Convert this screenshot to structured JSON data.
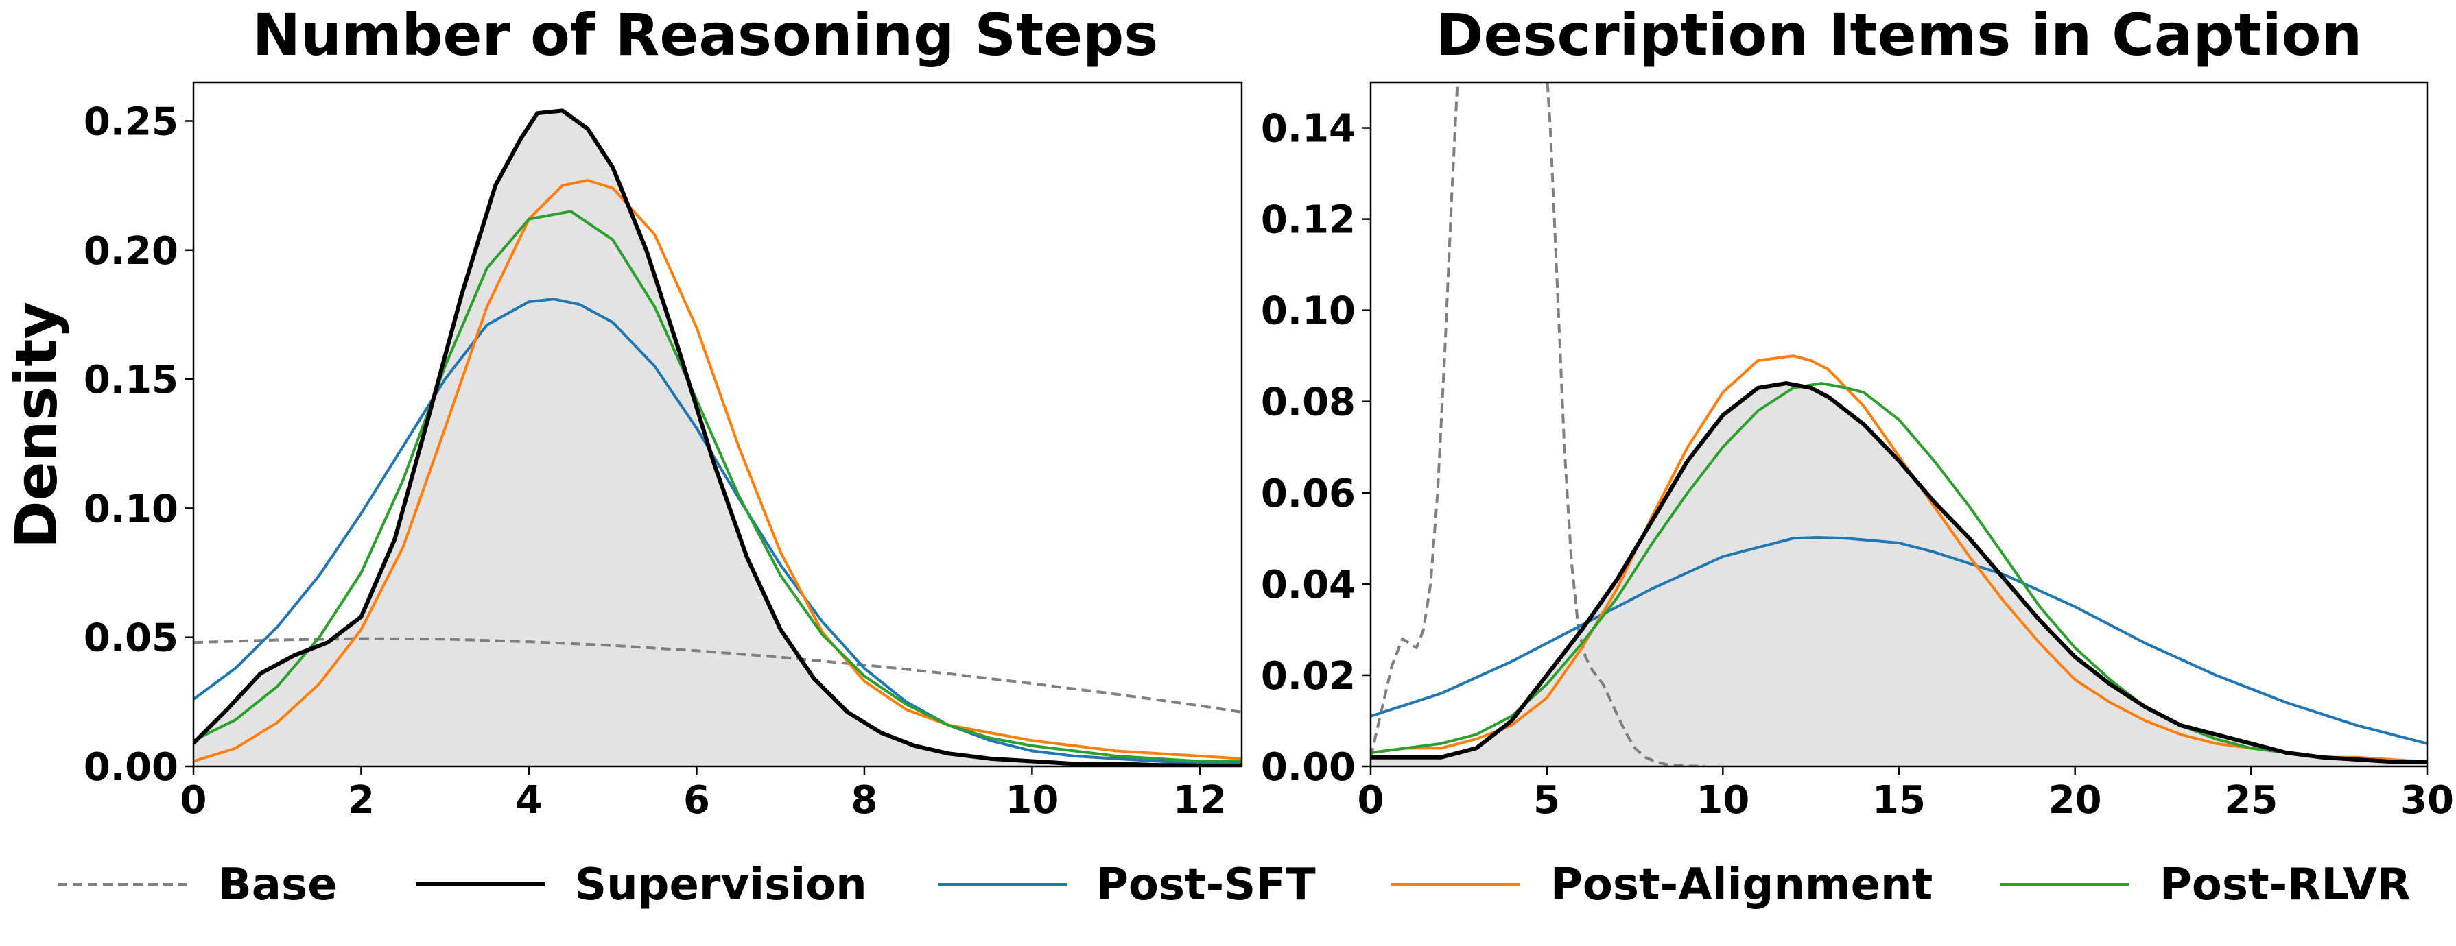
{
  "legend": [
    {
      "name": "Base",
      "color": "#7f7f7f",
      "dash": "dashed"
    },
    {
      "name": "Supervision",
      "color": "#000000",
      "dash": "solid"
    },
    {
      "name": "Post-SFT",
      "color": "#1f77b4",
      "dash": "solid"
    },
    {
      "name": "Post-Alignment",
      "color": "#ff7f0e",
      "dash": "solid"
    },
    {
      "name": "Post-RLVR",
      "color": "#2ca02c",
      "dash": "solid"
    }
  ],
  "chart_data": [
    {
      "type": "line",
      "title": "Number of Reasoning Steps",
      "ylabel": "Density",
      "xlabel": "",
      "xlim": [
        0,
        12.5
      ],
      "ylim": [
        0,
        0.265
      ],
      "xticks": [
        "0",
        "2",
        "4",
        "6",
        "8",
        "10",
        "12"
      ],
      "yticks": [
        "0.00",
        "0.05",
        "0.10",
        "0.15",
        "0.20",
        "0.25"
      ],
      "grid": false,
      "shaded_series": "Supervision",
      "series": [
        {
          "name": "Base",
          "color": "#7f7f7f",
          "dash": "dashed",
          "x": [
            0,
            1,
            2,
            3,
            4,
            5,
            6,
            7,
            8,
            9,
            10,
            11,
            12,
            12.5
          ],
          "y": [
            0.048,
            0.049,
            0.0495,
            0.0493,
            0.0483,
            0.0468,
            0.0448,
            0.0423,
            0.0393,
            0.0359,
            0.0321,
            0.028,
            0.0235,
            0.021
          ]
        },
        {
          "name": "Supervision",
          "color": "#000000",
          "dash": "solid",
          "x": [
            0,
            0.4,
            0.8,
            1.2,
            1.6,
            2.0,
            2.4,
            2.8,
            3.2,
            3.6,
            3.9,
            4.1,
            4.4,
            4.7,
            5.0,
            5.4,
            5.8,
            6.2,
            6.6,
            7.0,
            7.4,
            7.8,
            8.2,
            8.6,
            9.0,
            9.5,
            10,
            10.5,
            11,
            11.5,
            12,
            12.5
          ],
          "y": [
            0.009,
            0.022,
            0.036,
            0.043,
            0.048,
            0.058,
            0.088,
            0.135,
            0.183,
            0.225,
            0.243,
            0.253,
            0.254,
            0.247,
            0.232,
            0.2,
            0.16,
            0.118,
            0.081,
            0.053,
            0.034,
            0.021,
            0.013,
            0.008,
            0.005,
            0.003,
            0.002,
            0.001,
            0.001,
            0.0005,
            0.0003,
            0.0002
          ]
        },
        {
          "name": "Post-SFT",
          "color": "#1f77b4",
          "dash": "solid",
          "x": [
            0,
            0.5,
            1.0,
            1.5,
            2.0,
            2.5,
            3.0,
            3.5,
            4.0,
            4.3,
            4.6,
            5.0,
            5.5,
            6.0,
            6.5,
            7.0,
            7.5,
            8.0,
            8.5,
            9.0,
            9.5,
            10,
            10.5,
            11,
            11.5,
            12,
            12.5
          ],
          "y": [
            0.026,
            0.038,
            0.054,
            0.074,
            0.098,
            0.124,
            0.15,
            0.171,
            0.18,
            0.181,
            0.179,
            0.172,
            0.155,
            0.131,
            0.104,
            0.078,
            0.056,
            0.038,
            0.025,
            0.016,
            0.01,
            0.006,
            0.004,
            0.003,
            0.002,
            0.001,
            0.001
          ]
        },
        {
          "name": "Post-Alignment",
          "color": "#ff7f0e",
          "dash": "solid",
          "x": [
            0,
            0.5,
            1.0,
            1.5,
            2.0,
            2.5,
            3.0,
            3.5,
            4.0,
            4.4,
            4.7,
            5.0,
            5.5,
            6.0,
            6.5,
            7.0,
            7.5,
            8.0,
            8.5,
            9.0,
            9.5,
            10,
            10.5,
            11,
            11.5,
            12,
            12.5
          ],
          "y": [
            0.002,
            0.007,
            0.017,
            0.032,
            0.053,
            0.085,
            0.131,
            0.178,
            0.212,
            0.225,
            0.227,
            0.224,
            0.206,
            0.17,
            0.124,
            0.083,
            0.052,
            0.033,
            0.022,
            0.016,
            0.013,
            0.01,
            0.008,
            0.006,
            0.005,
            0.004,
            0.003
          ]
        },
        {
          "name": "Post-RLVR",
          "color": "#2ca02c",
          "dash": "solid",
          "x": [
            0,
            0.5,
            1.0,
            1.5,
            2.0,
            2.5,
            3.0,
            3.5,
            4.0,
            4.5,
            5.0,
            5.5,
            6.0,
            6.5,
            7.0,
            7.5,
            8.0,
            8.5,
            9.0,
            9.5,
            10,
            10.5,
            11,
            11.5,
            12,
            12.5
          ],
          "y": [
            0.01,
            0.018,
            0.031,
            0.05,
            0.075,
            0.111,
            0.155,
            0.193,
            0.212,
            0.215,
            0.204,
            0.178,
            0.142,
            0.105,
            0.074,
            0.051,
            0.035,
            0.024,
            0.016,
            0.011,
            0.008,
            0.006,
            0.004,
            0.003,
            0.002,
            0.002
          ]
        }
      ]
    },
    {
      "type": "line",
      "title": "Description Items in Caption",
      "xlabel": "",
      "ylabel": "",
      "xlim": [
        0,
        30
      ],
      "ylim": [
        0,
        0.15
      ],
      "xticks": [
        "0",
        "5",
        "10",
        "15",
        "20",
        "25",
        "30"
      ],
      "yticks": [
        "0.00",
        "0.02",
        "0.04",
        "0.06",
        "0.08",
        "0.10",
        "0.12",
        "0.14"
      ],
      "grid": false,
      "shaded_series": "Supervision",
      "series": [
        {
          "name": "Base",
          "color": "#7f7f7f",
          "dash": "dashed",
          "x": [
            0,
            0.3,
            0.6,
            0.9,
            1.1,
            1.3,
            1.5,
            1.7,
            1.9,
            2.1,
            2.3,
            2.45,
            2.5,
            5.0,
            5.1,
            5.3,
            5.5,
            5.7,
            5.9,
            6.1,
            6.3,
            6.6,
            6.9,
            7.2,
            7.5,
            7.8,
            8.1,
            8.4,
            8.7,
            9.0,
            9.5
          ],
          "y": [
            0.002,
            0.012,
            0.022,
            0.028,
            0.027,
            0.026,
            0.03,
            0.04,
            0.06,
            0.09,
            0.125,
            0.148,
            0.152,
            0.152,
            0.14,
            0.105,
            0.07,
            0.045,
            0.03,
            0.024,
            0.021,
            0.018,
            0.013,
            0.008,
            0.004,
            0.002,
            0.001,
            0.0004,
            0.0002,
            0.0001,
            0
          ]
        },
        {
          "name": "Supervision",
          "color": "#000000",
          "dash": "solid",
          "x": [
            0,
            1,
            2,
            3,
            4,
            5,
            6,
            7,
            8,
            9,
            10,
            11,
            11.8,
            12.5,
            13,
            14,
            15,
            16,
            17,
            18,
            19,
            20,
            21,
            22,
            23,
            24,
            25,
            26,
            27,
            28,
            29,
            30
          ],
          "y": [
            0.002,
            0.002,
            0.002,
            0.004,
            0.01,
            0.02,
            0.03,
            0.041,
            0.054,
            0.067,
            0.077,
            0.083,
            0.084,
            0.083,
            0.081,
            0.075,
            0.067,
            0.058,
            0.05,
            0.041,
            0.032,
            0.024,
            0.018,
            0.013,
            0.009,
            0.007,
            0.005,
            0.003,
            0.002,
            0.0015,
            0.001,
            0.001
          ]
        },
        {
          "name": "Post-SFT",
          "color": "#1f77b4",
          "dash": "solid",
          "x": [
            0,
            2,
            4,
            6,
            8,
            10,
            11,
            12,
            12.7,
            13.5,
            15,
            16,
            18,
            20,
            22,
            24,
            26,
            28,
            30
          ],
          "y": [
            0.011,
            0.016,
            0.023,
            0.031,
            0.039,
            0.046,
            0.048,
            0.05,
            0.0502,
            0.05,
            0.049,
            0.047,
            0.042,
            0.035,
            0.027,
            0.02,
            0.014,
            0.009,
            0.005
          ]
        },
        {
          "name": "Post-Alignment",
          "color": "#ff7f0e",
          "dash": "solid",
          "x": [
            0,
            1,
            2,
            3,
            4,
            5,
            6,
            7,
            8,
            9,
            10,
            11,
            12,
            12.5,
            13,
            14,
            15,
            16,
            17,
            18,
            19,
            20,
            21,
            22,
            23,
            24,
            25,
            26,
            27,
            28,
            29,
            30
          ],
          "y": [
            0.003,
            0.004,
            0.004,
            0.006,
            0.009,
            0.015,
            0.026,
            0.039,
            0.055,
            0.07,
            0.082,
            0.089,
            0.09,
            0.089,
            0.087,
            0.079,
            0.068,
            0.057,
            0.046,
            0.036,
            0.027,
            0.019,
            0.014,
            0.01,
            0.007,
            0.005,
            0.004,
            0.003,
            0.002,
            0.002,
            0.0015,
            0.001
          ]
        },
        {
          "name": "Post-RLVR",
          "color": "#2ca02c",
          "dash": "solid",
          "x": [
            0,
            1,
            2,
            3,
            4,
            5,
            6,
            7,
            8,
            9,
            10,
            11,
            12,
            12.8,
            13.5,
            14,
            15,
            16,
            17,
            18,
            19,
            20,
            21,
            22,
            23,
            24,
            25,
            26,
            27,
            28,
            29,
            30
          ],
          "y": [
            0.003,
            0.004,
            0.005,
            0.007,
            0.011,
            0.018,
            0.027,
            0.037,
            0.049,
            0.06,
            0.07,
            0.078,
            0.083,
            0.084,
            0.083,
            0.082,
            0.076,
            0.067,
            0.057,
            0.046,
            0.035,
            0.026,
            0.019,
            0.013,
            0.009,
            0.006,
            0.004,
            0.003,
            0.002,
            0.0015,
            0.001,
            0.001
          ]
        }
      ]
    }
  ]
}
